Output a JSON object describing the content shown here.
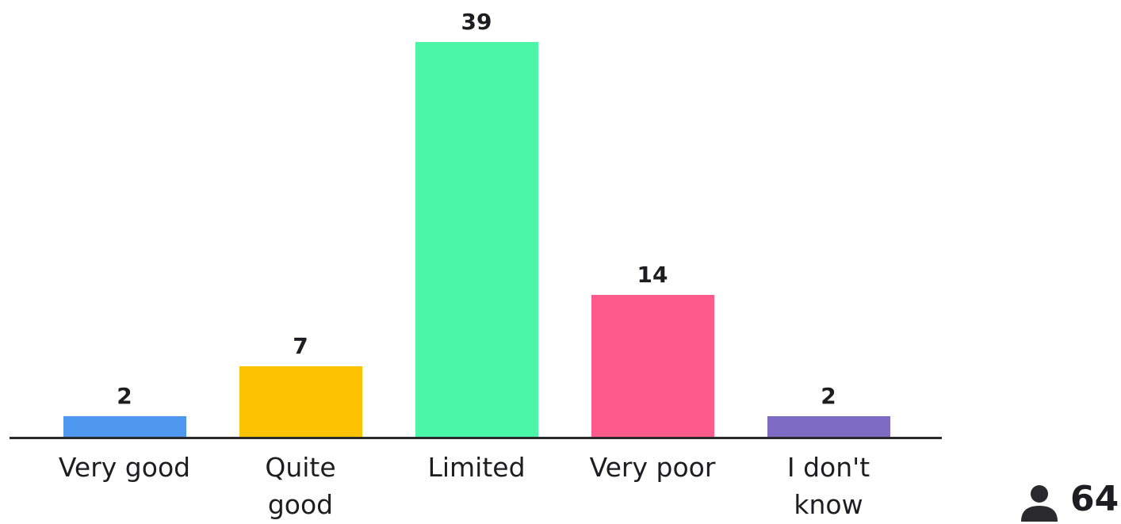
{
  "chart_data": {
    "type": "bar",
    "categories": [
      "Very good",
      "Quite good",
      "Limited",
      "Very poor",
      "I don't know"
    ],
    "values": [
      2,
      7,
      39,
      14,
      2
    ],
    "colors": [
      "#4f98f0",
      "#fdc300",
      "#4af7a6",
      "#fe5a8b",
      "#7e6cc4"
    ],
    "participants": 64
  }
}
